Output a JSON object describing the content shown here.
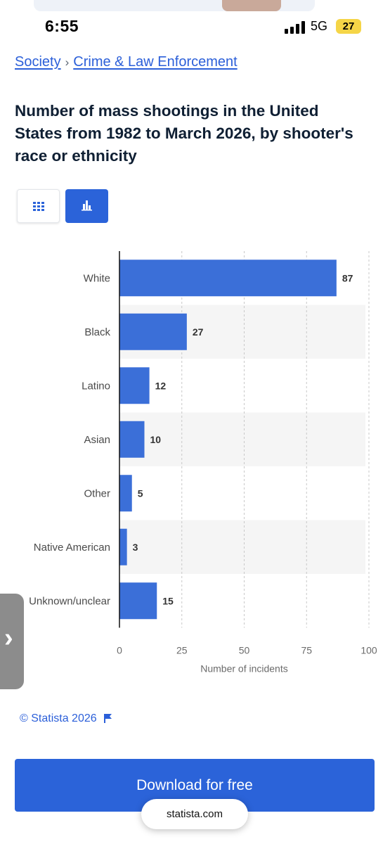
{
  "status_bar": {
    "time": "6:55",
    "network": "5G",
    "battery": "27"
  },
  "breadcrumb": {
    "items": [
      "Society",
      "Crime & Law Enforcement"
    ],
    "separator": "›"
  },
  "title": "Number of mass shootings in the United States from 1982 to March 2026, by shooter's race or ethnicity",
  "view_toggle": {
    "active": "chart",
    "options": [
      "table",
      "chart"
    ]
  },
  "chart_data": {
    "type": "bar",
    "orientation": "horizontal",
    "categories": [
      "White",
      "Black",
      "Latino",
      "Asian",
      "Other",
      "Native American",
      "Unknown/unclear"
    ],
    "values": [
      87,
      27,
      12,
      10,
      5,
      3,
      15
    ],
    "xlabel": "Number of incidents",
    "ylabel": "",
    "xlim": [
      0,
      100
    ],
    "ticks": [
      "0",
      "25",
      "50",
      "75",
      "100"
    ],
    "grid": true,
    "bar_color": "#3b6fd8"
  },
  "copyright": "© Statista 2026",
  "download_label": "Download for free",
  "url": "statista.com",
  "side_handle_icon": "chevron-right-icon"
}
